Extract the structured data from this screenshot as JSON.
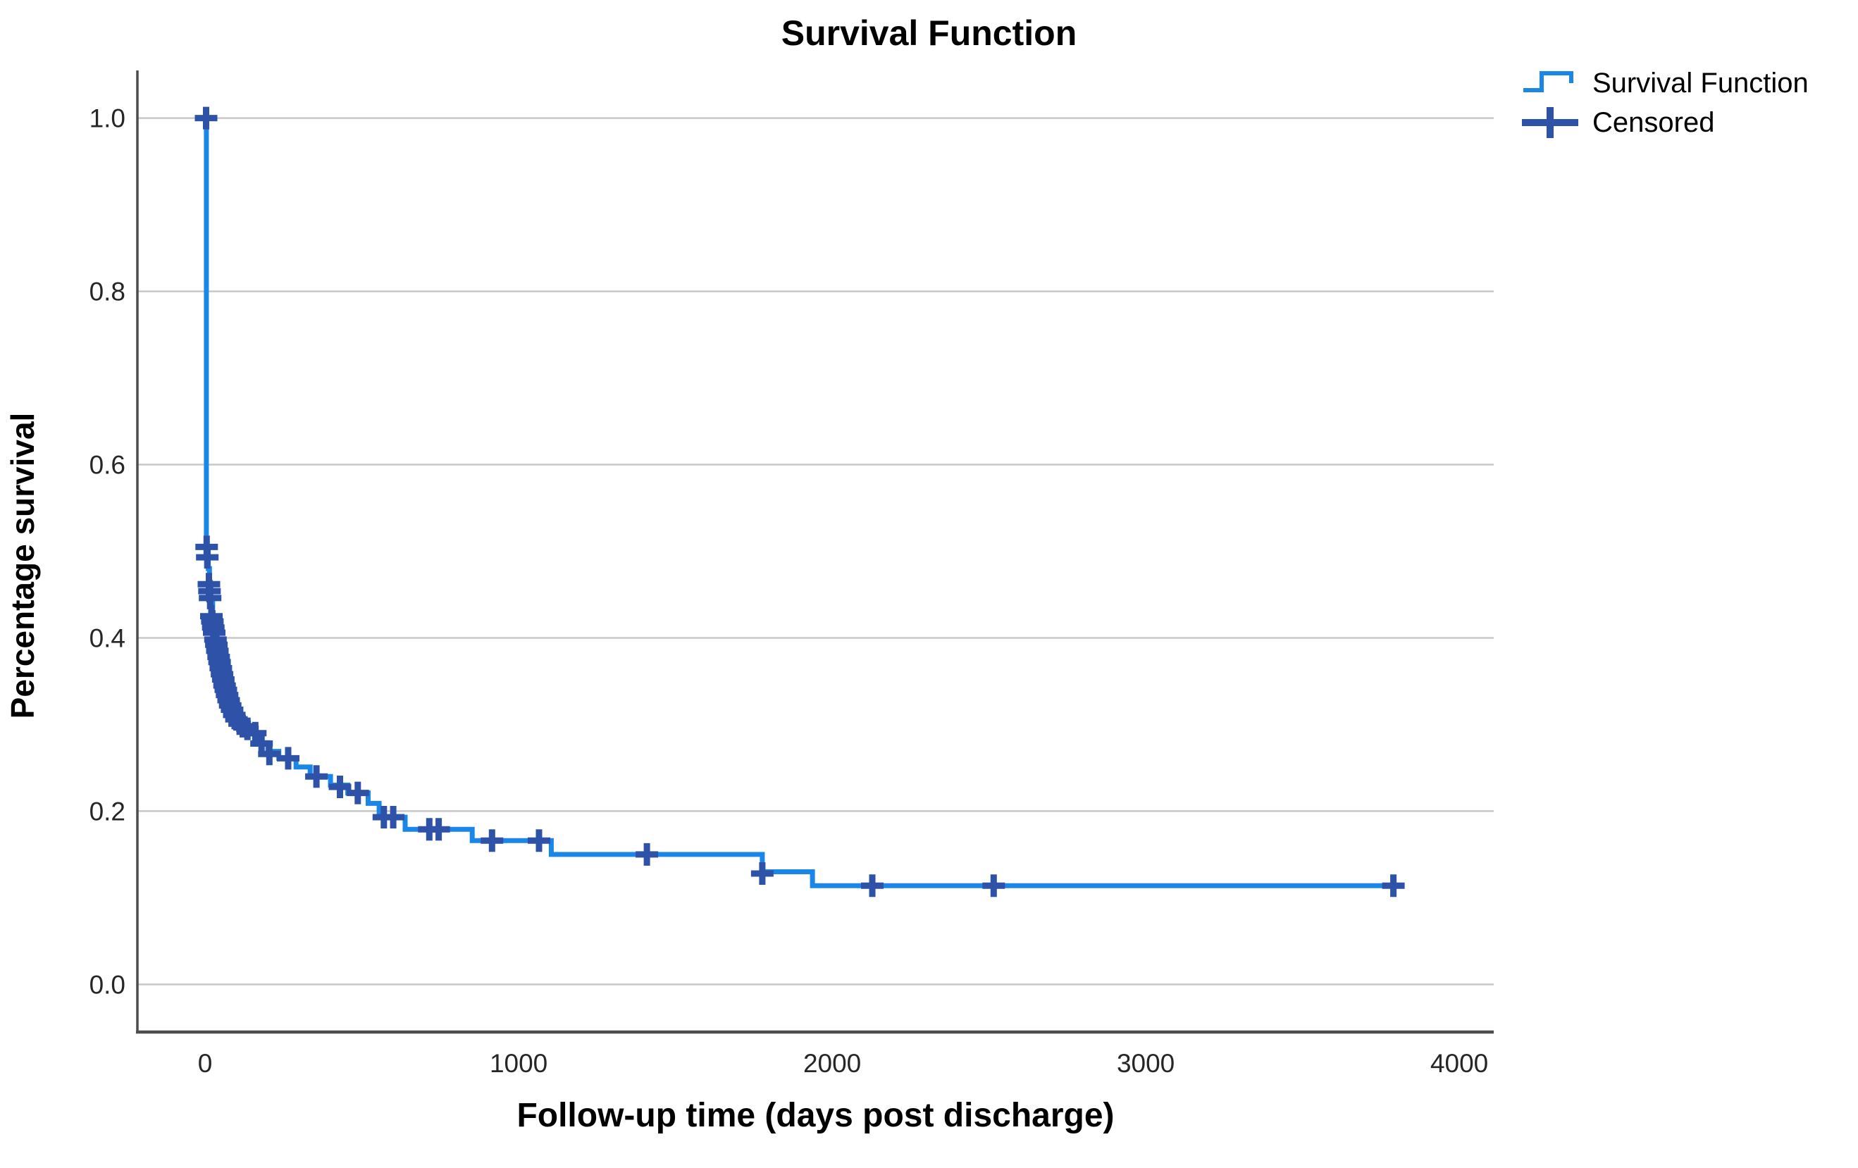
{
  "title": "Survival Function",
  "colors": {
    "survival_line": "#1a86e8",
    "censored_mark": "#2d52a8",
    "gridline": "#c8c8c8",
    "axis": "#4d4d4d",
    "tick_text": "#262626",
    "text": "#000000"
  },
  "legend": {
    "items": [
      {
        "label": "Survival Function",
        "marker": "step-line"
      },
      {
        "label": "Censored",
        "marker": "plus"
      }
    ]
  },
  "chart_data": {
    "type": "line",
    "subtype": "kaplan-meier-step",
    "title": "Survival Function",
    "xlabel": "Follow-up time (days post discharge)",
    "ylabel": "Percentage survival",
    "xlim": [
      -216,
      4110
    ],
    "ylim": [
      -0.055,
      1.055
    ],
    "grid": "horizontal",
    "legend_position": "top-right-outside",
    "x_ticks": [
      {
        "v": 0,
        "label": "0"
      },
      {
        "v": 1000,
        "label": "1000"
      },
      {
        "v": 2000,
        "label": "2000"
      },
      {
        "v": 3000,
        "label": "3000"
      },
      {
        "v": 4000,
        "label": "4000"
      }
    ],
    "y_ticks": [
      {
        "v": 1.0,
        "label": "1.0"
      },
      {
        "v": 0.8,
        "label": "0.8"
      },
      {
        "v": 0.6,
        "label": "0.6"
      },
      {
        "v": 0.4,
        "label": "0.4"
      },
      {
        "v": 0.2,
        "label": "0.2"
      },
      {
        "v": 0.0,
        "label": "0.0"
      }
    ],
    "series": [
      {
        "name": "Survival Function",
        "steps": [
          [
            0,
            1.0
          ],
          [
            4,
            1.0
          ],
          [
            4,
            0.5
          ],
          [
            10,
            0.5
          ],
          [
            10,
            0.48
          ],
          [
            14,
            0.48
          ],
          [
            14,
            0.46
          ],
          [
            18,
            0.46
          ],
          [
            18,
            0.442
          ],
          [
            24,
            0.442
          ],
          [
            24,
            0.424
          ],
          [
            30,
            0.424
          ],
          [
            30,
            0.408
          ],
          [
            36,
            0.408
          ],
          [
            36,
            0.393
          ],
          [
            42,
            0.393
          ],
          [
            42,
            0.379
          ],
          [
            48,
            0.379
          ],
          [
            48,
            0.366
          ],
          [
            55,
            0.366
          ],
          [
            55,
            0.353
          ],
          [
            62,
            0.353
          ],
          [
            62,
            0.341
          ],
          [
            70,
            0.341
          ],
          [
            70,
            0.331
          ],
          [
            80,
            0.331
          ],
          [
            80,
            0.321
          ],
          [
            92,
            0.321
          ],
          [
            92,
            0.312
          ],
          [
            105,
            0.312
          ],
          [
            105,
            0.304
          ],
          [
            125,
            0.304
          ],
          [
            125,
            0.297
          ],
          [
            155,
            0.297
          ],
          [
            155,
            0.289
          ],
          [
            175,
            0.289
          ],
          [
            175,
            0.279
          ],
          [
            200,
            0.279
          ],
          [
            200,
            0.269
          ],
          [
            235,
            0.269
          ],
          [
            235,
            0.261
          ],
          [
            290,
            0.261
          ],
          [
            290,
            0.251
          ],
          [
            335,
            0.251
          ],
          [
            335,
            0.24
          ],
          [
            400,
            0.24
          ],
          [
            400,
            0.23
          ],
          [
            455,
            0.23
          ],
          [
            455,
            0.221
          ],
          [
            520,
            0.221
          ],
          [
            520,
            0.209
          ],
          [
            555,
            0.209
          ],
          [
            555,
            0.193
          ],
          [
            638,
            0.193
          ],
          [
            638,
            0.179
          ],
          [
            852,
            0.179
          ],
          [
            852,
            0.166
          ],
          [
            1104,
            0.166
          ],
          [
            1104,
            0.15
          ],
          [
            1777,
            0.15
          ],
          [
            1777,
            0.13
          ],
          [
            1937,
            0.13
          ],
          [
            1937,
            0.114
          ],
          [
            3790,
            0.114
          ]
        ]
      }
    ],
    "censored": {
      "name": "Censored",
      "points": [
        [
          3,
          1.0
        ],
        [
          5,
          0.505
        ],
        [
          7,
          0.493
        ],
        [
          12,
          0.462
        ],
        [
          14,
          0.454
        ],
        [
          16,
          0.446
        ],
        [
          20,
          0.425
        ],
        [
          23,
          0.419
        ],
        [
          26,
          0.412
        ],
        [
          29,
          0.406
        ],
        [
          33,
          0.398
        ],
        [
          36,
          0.392
        ],
        [
          39,
          0.385
        ],
        [
          43,
          0.378
        ],
        [
          46,
          0.372
        ],
        [
          50,
          0.365
        ],
        [
          54,
          0.358
        ],
        [
          58,
          0.352
        ],
        [
          62,
          0.345
        ],
        [
          66,
          0.34
        ],
        [
          70,
          0.334
        ],
        [
          75,
          0.328
        ],
        [
          80,
          0.322
        ],
        [
          86,
          0.317
        ],
        [
          93,
          0.311
        ],
        [
          100,
          0.306
        ],
        [
          110,
          0.301
        ],
        [
          120,
          0.298
        ],
        [
          135,
          0.295
        ],
        [
          160,
          0.29
        ],
        [
          180,
          0.278
        ],
        [
          205,
          0.266
        ],
        [
          265,
          0.261
        ],
        [
          355,
          0.24
        ],
        [
          430,
          0.228
        ],
        [
          487,
          0.221
        ],
        [
          570,
          0.193
        ],
        [
          600,
          0.193
        ],
        [
          715,
          0.179
        ],
        [
          745,
          0.179
        ],
        [
          915,
          0.166
        ],
        [
          1065,
          0.166
        ],
        [
          1409,
          0.15
        ],
        [
          1777,
          0.128
        ],
        [
          2128,
          0.114
        ],
        [
          2515,
          0.114
        ],
        [
          3790,
          0.114
        ]
      ]
    }
  }
}
